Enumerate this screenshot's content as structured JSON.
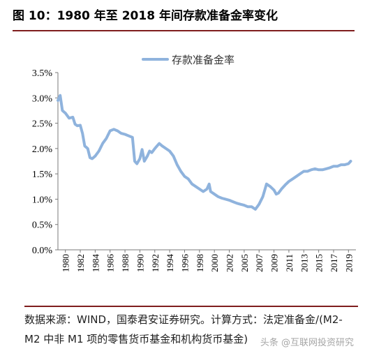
{
  "header": {
    "title": "图 10：1980 年至 2018 年间存款准备金率变化"
  },
  "footer": {
    "source": "数据来源：WIND，国泰君安证券研究。计算方式：法定准备金/(M2-M2 中非 M1 项的零售货币基金和机构货币基金)",
    "watermark": "头条 @互联网投资研究"
  },
  "colors": {
    "series": "#8fb3dd",
    "axis": "#7a7a7a",
    "rule": "#7f1d1d"
  },
  "chart_data": {
    "type": "line",
    "title": "",
    "xlabel": "",
    "ylabel": "",
    "xlim": [
      1980,
      2020
    ],
    "ylim": [
      0,
      3.5
    ],
    "yticks": [
      "0.0%",
      "0.5%",
      "1.0%",
      "1.5%",
      "2.0%",
      "2.5%",
      "3.0%",
      "3.5%"
    ],
    "xticks": [
      "1980",
      "1982",
      "1984",
      "1986",
      "1988",
      "1990",
      "1992",
      "1994",
      "1996",
      "1998",
      "2000",
      "2002",
      "2005",
      "2007",
      "2009",
      "2011",
      "2013",
      "2015",
      "2017",
      "2019"
    ],
    "legend": "top-left",
    "grid": false,
    "series": [
      {
        "name": "存款准备金率",
        "x": [
          1980.0,
          1980.3,
          1980.6,
          1981.0,
          1981.5,
          1982.0,
          1982.3,
          1982.6,
          1983.0,
          1983.3,
          1983.6,
          1984.0,
          1984.3,
          1984.6,
          1985.0,
          1985.5,
          1986.0,
          1986.5,
          1987.0,
          1987.5,
          1988.0,
          1988.5,
          1989.0,
          1989.5,
          1990.0,
          1990.3,
          1990.6,
          1991.0,
          1991.3,
          1991.6,
          1992.0,
          1992.3,
          1992.6,
          1993.0,
          1993.3,
          1993.6,
          1994.0,
          1994.5,
          1995.0,
          1995.5,
          1996.0,
          1996.5,
          1997.0,
          1997.5,
          1998.0,
          1998.5,
          1999.0,
          1999.5,
          2000.0,
          2000.3,
          2000.5,
          2001.0,
          2001.5,
          2002.0,
          2002.5,
          2003.0,
          2003.5,
          2004.0,
          2004.5,
          2005.0,
          2005.5,
          2006.0,
          2006.5,
          2007.0,
          2007.5,
          2008.0,
          2008.5,
          2009.0,
          2009.3,
          2009.6,
          2010.0,
          2010.5,
          2011.0,
          2011.5,
          2012.0,
          2012.5,
          2013.0,
          2013.5,
          2014.0,
          2014.5,
          2015.0,
          2015.5,
          2016.0,
          2016.5,
          2017.0,
          2017.5,
          2018.0,
          2018.5,
          2019.0,
          2019.3
        ],
        "values": [
          2.95,
          3.05,
          2.75,
          2.7,
          2.6,
          2.62,
          2.48,
          2.45,
          2.46,
          2.3,
          2.05,
          2.0,
          1.82,
          1.8,
          1.85,
          1.95,
          2.1,
          2.2,
          2.35,
          2.38,
          2.35,
          2.3,
          2.28,
          2.25,
          2.22,
          1.75,
          1.7,
          1.8,
          1.98,
          1.75,
          1.85,
          1.95,
          1.92,
          2.0,
          2.05,
          2.1,
          2.05,
          2.0,
          1.95,
          1.85,
          1.68,
          1.55,
          1.45,
          1.4,
          1.3,
          1.25,
          1.2,
          1.15,
          1.2,
          1.3,
          1.15,
          1.1,
          1.05,
          1.02,
          1.0,
          0.98,
          0.95,
          0.92,
          0.9,
          0.88,
          0.85,
          0.85,
          0.8,
          0.9,
          1.05,
          1.3,
          1.25,
          1.18,
          1.1,
          1.12,
          1.2,
          1.28,
          1.35,
          1.4,
          1.45,
          1.5,
          1.55,
          1.55,
          1.58,
          1.6,
          1.58,
          1.58,
          1.6,
          1.62,
          1.65,
          1.65,
          1.68,
          1.68,
          1.7,
          1.75
        ]
      }
    ]
  }
}
